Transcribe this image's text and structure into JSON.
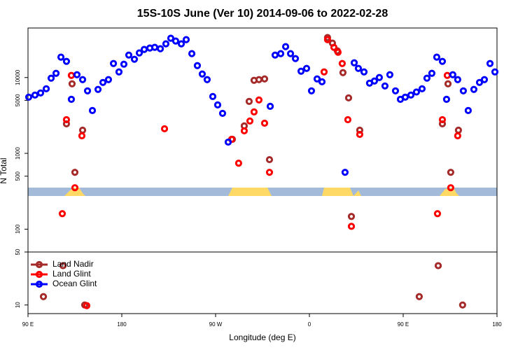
{
  "chart_data": {
    "type": "scatter",
    "title": "15S-10S June (Ver 10)   2014-09-06 to 2022-02-28",
    "x_label": "Longitude (deg E)",
    "y_label": "N Total",
    "log_y": true,
    "panel_break": 50,
    "legend": "lower left",
    "xlim": [
      90,
      540
    ],
    "ylim": [
      7.7,
      45000
    ],
    "xticks": [
      {
        "value": 90,
        "label": "90 E"
      },
      {
        "value": 180,
        "label": "180"
      },
      {
        "value": 270,
        "label": "90 W"
      },
      {
        "value": 360,
        "label": "0"
      },
      {
        "value": 450,
        "label": "90 E"
      },
      {
        "value": 540,
        "label": "180"
      }
    ],
    "yticks": [
      10,
      50,
      100,
      500,
      1000,
      5000,
      10000
    ],
    "series": [
      {
        "name": "Land Nadir",
        "color": "#a52a2a",
        "x": [
          104.8,
          123.6,
          126.9,
          132.3,
          135,
          142.4,
          144.4,
          286.1,
          297.5,
          302.2,
          306.9,
          311.6,
          317,
          321.7,
          377.4,
          382.1,
          386.8,
          392.2,
          397.6,
          400.3,
          408.3,
          465.4,
          483.6,
          487.6,
          493,
          495.6,
          503,
          507
        ],
        "values": [
          12.9,
          33,
          2450,
          8260,
          562,
          2020,
          10,
          1531,
          2300,
          4840,
          9180,
          9380,
          9580,
          826,
          33700,
          28430,
          22490,
          11610,
          5390,
          147,
          2020,
          12.9,
          33,
          2450,
          8260,
          562,
          2020,
          10
        ]
      },
      {
        "name": "Land Glint",
        "color": "#ff0000",
        "x": [
          122.9,
          126.9,
          131.6,
          135,
          141.7,
          146.4,
          221,
          285.4,
          292.1,
          297.5,
          302.9,
          306.9,
          311.6,
          317,
          321.7,
          374.1,
          377.4,
          383.5,
          387.5,
          391.5,
          396.9,
          400.3,
          408.3,
          482.9,
          487.6,
          492.3,
          495.6,
          502.3
        ],
        "values": [
          160,
          2780,
          10660,
          352,
          1703,
          9.8,
          2110,
          1531,
          742,
          1980,
          2670,
          3520,
          5060,
          2500,
          562,
          11860,
          31620,
          25000,
          21540,
          15310,
          2780,
          109,
          1778,
          160,
          2780,
          10660,
          352,
          1703
        ]
      },
      {
        "name": "Ocean Glint",
        "color": "#0000ff",
        "x": [
          90.7,
          96.7,
          102.1,
          107.5,
          112.2,
          116.9,
          121.6,
          126.9,
          131.6,
          137,
          142.4,
          147.1,
          151.8,
          157.2,
          161.9,
          167.2,
          172,
          177.3,
          182,
          186.7,
          192.1,
          196.8,
          201.5,
          206.9,
          211.6,
          217,
          222.3,
          227,
          231.7,
          237.1,
          241.8,
          247.2,
          252.5,
          257.2,
          261.9,
          267.3,
          272,
          276.7,
          282.1,
          322.4,
          327.1,
          332.5,
          337.2,
          341.9,
          346.6,
          352,
          357.3,
          362,
          367.4,
          372.1,
          394.2,
          403,
          407,
          412.4,
          417.7,
          422.4,
          427.1,
          432.5,
          437.2,
          442.6,
          447.3,
          452,
          457.4,
          462.7,
          468.1,
          472.8,
          477.5,
          482.2,
          487.6,
          491.6,
          497.6,
          502.3,
          507.7,
          512.4,
          517.8,
          523.2,
          527.9,
          533.3,
          538
        ],
        "values": [
          5510,
          5870,
          6260,
          7110,
          9800,
          11370,
          18560,
          16330,
          5160,
          10890,
          9380,
          6670,
          3670,
          6970,
          8610,
          9380,
          15310,
          11860,
          14990,
          19770,
          17410,
          21090,
          23470,
          24480,
          25000,
          23970,
          27800,
          33000,
          30300,
          27800,
          31620,
          20650,
          14350,
          11120,
          9380,
          5620,
          4350,
          3370,
          1406,
          4170,
          19770,
          20650,
          25550,
          20650,
          17780,
          12110,
          13190,
          6670,
          9580,
          8790,
          562,
          15640,
          13190,
          11860,
          8430,
          8990,
          10000,
          7740,
          10890,
          6670,
          5160,
          5510,
          5870,
          6440,
          7110,
          9800,
          11370,
          18560,
          16330,
          5160,
          10890,
          9380,
          6670,
          3670,
          6970,
          8610,
          9380,
          15310,
          11860
        ]
      }
    ]
  }
}
